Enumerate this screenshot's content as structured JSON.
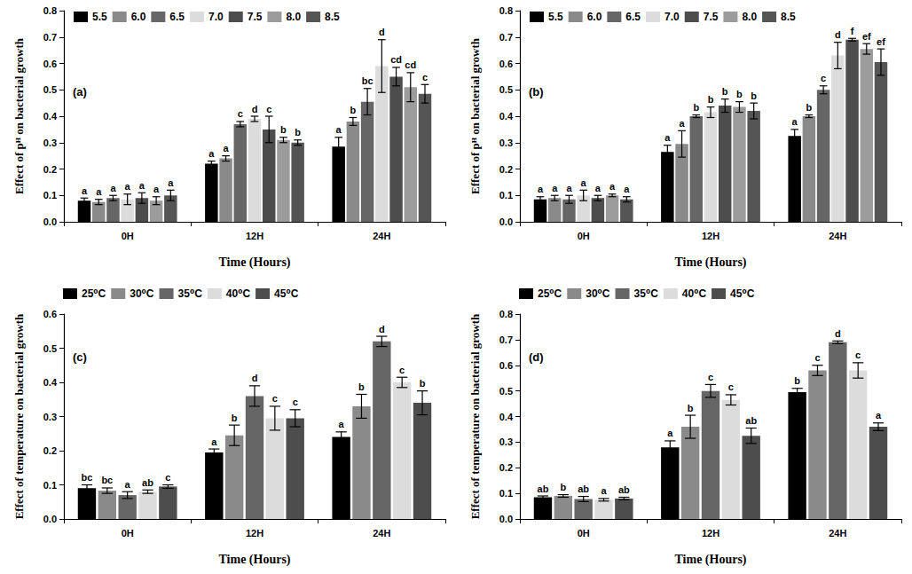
{
  "chart_data": [
    {
      "type": "bar",
      "panel_label": "(a)",
      "x_label": "Time (Hours)",
      "y_label": "Effect of pᴴ on bacterial growth",
      "categories": [
        "0H",
        "12H",
        "24H"
      ],
      "legend": "upper left",
      "ylim": [
        0,
        0.8
      ],
      "yticks": [
        {
          "value": 0,
          "label": "0.0"
        },
        0.1,
        0.2,
        0.3,
        0.4,
        0.5,
        0.6,
        0.7,
        0.8
      ],
      "series": [
        {
          "name": "5.5",
          "color": "#000000",
          "values": [
            0.08,
            0.22,
            0.285
          ],
          "errors": [
            0.01,
            0.01,
            0.035
          ],
          "letters": [
            "a",
            "a",
            "a"
          ]
        },
        {
          "name": "6.0",
          "color": "#8a8a8a",
          "values": [
            0.075,
            0.24,
            0.38
          ],
          "errors": [
            0.01,
            0.01,
            0.015
          ],
          "letters": [
            "a",
            "a",
            "b"
          ]
        },
        {
          "name": "6.5",
          "color": "#666666",
          "values": [
            0.09,
            0.37,
            0.455
          ],
          "errors": [
            0.01,
            0.01,
            0.05
          ],
          "letters": [
            "a",
            "c",
            "bc"
          ]
        },
        {
          "name": "7.0",
          "color": "#dcdcdc",
          "values": [
            0.085,
            0.39,
            0.59
          ],
          "errors": [
            0.02,
            0.01,
            0.1
          ],
          "letters": [
            "a",
            "d",
            "d"
          ]
        },
        {
          "name": "7.5",
          "color": "#4d4d4d",
          "values": [
            0.09,
            0.35,
            0.55
          ],
          "errors": [
            0.02,
            0.05,
            0.035
          ],
          "letters": [
            "a",
            "c",
            "cd"
          ]
        },
        {
          "name": "8.0",
          "color": "#9c9c9c",
          "values": [
            0.08,
            0.31,
            0.51
          ],
          "errors": [
            0.015,
            0.01,
            0.055
          ],
          "letters": [
            "a",
            "b",
            "cd"
          ]
        },
        {
          "name": "8.5",
          "color": "#555555",
          "values": [
            0.1,
            0.3,
            0.485
          ],
          "errors": [
            0.02,
            0.01,
            0.035
          ],
          "letters": [
            "a",
            "b",
            "c"
          ]
        }
      ]
    },
    {
      "type": "bar",
      "panel_label": "(b)",
      "x_label": "Time (Hours)",
      "y_label": "Effect of pᴴ on bacterial growth",
      "categories": [
        "0H",
        "12H",
        "24H"
      ],
      "legend": "upper left",
      "ylim": [
        0,
        0.8
      ],
      "yticks": [
        {
          "value": 0,
          "label": "0.0"
        },
        0.1,
        0.2,
        0.3,
        0.4,
        0.5,
        0.6,
        0.7,
        0.8
      ],
      "series": [
        {
          "name": "5.5",
          "color": "#000000",
          "values": [
            0.085,
            0.265,
            0.325
          ],
          "errors": [
            0.01,
            0.025,
            0.025
          ],
          "letters": [
            "a",
            "a",
            "a"
          ]
        },
        {
          "name": "6.0",
          "color": "#8a8a8a",
          "values": [
            0.09,
            0.295,
            0.4
          ],
          "errors": [
            0.01,
            0.05,
            0.005
          ],
          "letters": [
            "a",
            "a",
            "b"
          ]
        },
        {
          "name": "6.5",
          "color": "#666666",
          "values": [
            0.085,
            0.4,
            0.5
          ],
          "errors": [
            0.015,
            0.005,
            0.015
          ],
          "letters": [
            "a",
            "b",
            "c"
          ]
        },
        {
          "name": "7.0",
          "color": "#dcdcdc",
          "values": [
            0.1,
            0.415,
            0.63
          ],
          "errors": [
            0.02,
            0.02,
            0.05
          ],
          "letters": [
            "a",
            "b",
            "d"
          ]
        },
        {
          "name": "7.5",
          "color": "#4d4d4d",
          "values": [
            0.09,
            0.44,
            0.69
          ],
          "errors": [
            0.01,
            0.025,
            0.005
          ],
          "letters": [
            "a",
            "b",
            "f"
          ]
        },
        {
          "name": "8.0",
          "color": "#9c9c9c",
          "values": [
            0.1,
            0.435,
            0.655
          ],
          "errors": [
            0.005,
            0.02,
            0.02
          ],
          "letters": [
            "a",
            "b",
            "ef"
          ]
        },
        {
          "name": "8.5",
          "color": "#555555",
          "values": [
            0.085,
            0.42,
            0.605
          ],
          "errors": [
            0.01,
            0.03,
            0.05
          ],
          "letters": [
            "a",
            "b",
            "ef"
          ]
        }
      ]
    },
    {
      "type": "bar",
      "panel_label": "(c)",
      "x_label": "Time (Hours)",
      "y_label": "Effect of temperature on bacterial growth",
      "categories": [
        "0H",
        "12H",
        "24H"
      ],
      "legend": "top",
      "ylim": [
        0,
        0.6
      ],
      "yticks": [
        {
          "value": 0,
          "label": "0.0"
        },
        0.1,
        0.2,
        0.3,
        0.4,
        0.5,
        0.6
      ],
      "series": [
        {
          "name": "25⁰C",
          "color": "#000000",
          "values": [
            0.09,
            0.195,
            0.24
          ],
          "errors": [
            0.01,
            0.01,
            0.015
          ],
          "letters": [
            "bc",
            "a",
            "a"
          ]
        },
        {
          "name": "30⁰C",
          "color": "#8a8a8a",
          "values": [
            0.083,
            0.245,
            0.33
          ],
          "errors": [
            0.008,
            0.03,
            0.035
          ],
          "letters": [
            "bc",
            "b",
            "b"
          ]
        },
        {
          "name": "35⁰C",
          "color": "#666666",
          "values": [
            0.07,
            0.36,
            0.52
          ],
          "errors": [
            0.01,
            0.03,
            0.015
          ],
          "letters": [
            "a",
            "d",
            "d"
          ]
        },
        {
          "name": "40⁰C",
          "color": "#dcdcdc",
          "values": [
            0.08,
            0.295,
            0.4
          ],
          "errors": [
            0.005,
            0.035,
            0.015
          ],
          "letters": [
            "ab",
            "c",
            "c"
          ]
        },
        {
          "name": "45⁰C",
          "color": "#4d4d4d",
          "values": [
            0.095,
            0.295,
            0.34
          ],
          "errors": [
            0.005,
            0.025,
            0.035
          ],
          "letters": [
            "c",
            "c",
            "b"
          ]
        }
      ]
    },
    {
      "type": "bar",
      "panel_label": "(d)",
      "x_label": "Time (Hours)",
      "y_label": "Effect of temperature on bacterial growth",
      "categories": [
        "0H",
        "12H",
        "24H"
      ],
      "legend": "top",
      "ylim": [
        0,
        0.8
      ],
      "yticks": [
        {
          "value": 0,
          "label": "0.0"
        },
        0.1,
        0.2,
        0.3,
        0.4,
        0.5,
        0.6,
        0.7,
        0.8
      ],
      "series": [
        {
          "name": "25⁰C",
          "color": "#000000",
          "values": [
            0.085,
            0.28,
            0.495
          ],
          "errors": [
            0.005,
            0.025,
            0.015
          ],
          "letters": [
            "ab",
            "a",
            "b"
          ]
        },
        {
          "name": "30⁰C",
          "color": "#8a8a8a",
          "values": [
            0.09,
            0.36,
            0.58
          ],
          "errors": [
            0.005,
            0.045,
            0.02
          ],
          "letters": [
            "b",
            "b",
            "c"
          ]
        },
        {
          "name": "35⁰C",
          "color": "#666666",
          "values": [
            0.078,
            0.5,
            0.69
          ],
          "errors": [
            0.01,
            0.025,
            0.005
          ],
          "letters": [
            "ab",
            "c",
            "d"
          ]
        },
        {
          "name": "40⁰C",
          "color": "#dcdcdc",
          "values": [
            0.075,
            0.465,
            0.58
          ],
          "errors": [
            0.005,
            0.02,
            0.03
          ],
          "letters": [
            "a",
            "c",
            "c"
          ]
        },
        {
          "name": "45⁰C",
          "color": "#4d4d4d",
          "values": [
            0.08,
            0.325,
            0.36
          ],
          "errors": [
            0.005,
            0.03,
            0.015
          ],
          "letters": [
            "ab",
            "ab",
            "a"
          ]
        }
      ]
    }
  ]
}
